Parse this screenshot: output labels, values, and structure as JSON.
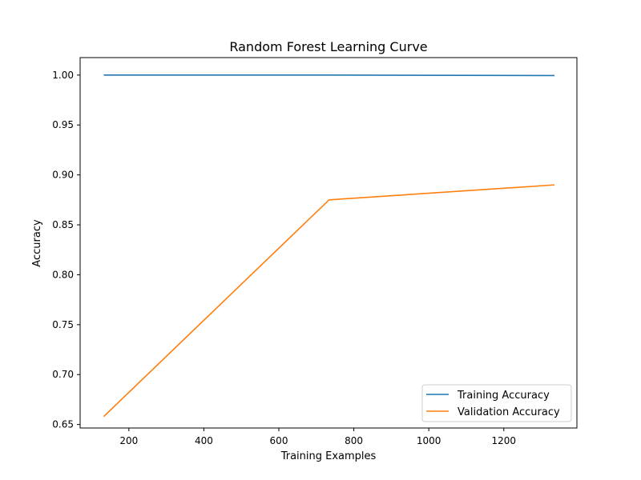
{
  "chart_data": {
    "type": "line",
    "title": "Random Forest Learning Curve",
    "xlabel": "Training Examples",
    "ylabel": "Accuracy",
    "xlim": [
      70,
      1395
    ],
    "ylim": [
      0.6465,
      1.0175
    ],
    "xticks": [
      200,
      400,
      600,
      800,
      1000,
      1200
    ],
    "yticks": [
      0.65,
      0.7,
      0.75,
      0.8,
      0.85,
      0.9,
      0.95,
      1.0
    ],
    "ytick_labels": [
      "0.65",
      "0.70",
      "0.75",
      "0.80",
      "0.85",
      "0.90",
      "0.95",
      "1.00"
    ],
    "legend_position": "lower-right",
    "series": [
      {
        "name": "Training Accuracy",
        "color": "#1f77b4",
        "x": [
          133,
          734,
          1335
        ],
        "y": [
          1.0,
          1.0,
          0.9995
        ]
      },
      {
        "name": "Validation Accuracy",
        "color": "#ff7f0e",
        "x": [
          133,
          734,
          1335
        ],
        "y": [
          0.658,
          0.875,
          0.89
        ]
      }
    ]
  }
}
